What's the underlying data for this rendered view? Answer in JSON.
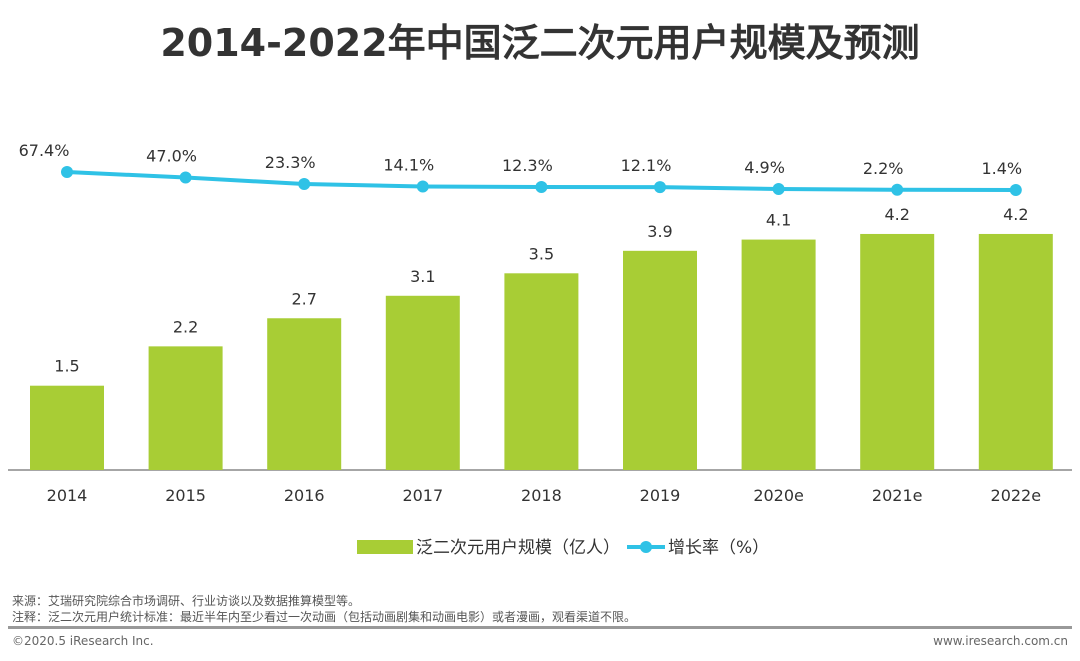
{
  "chart_data": {
    "type": "bar+line",
    "title": "2014-2022年中国泛二次元用户规模及预测",
    "categories": [
      "2014",
      "2015",
      "2016",
      "2017",
      "2018",
      "2019",
      "2020e",
      "2021e",
      "2022e"
    ],
    "series": [
      {
        "name": "泛二次元用户规模（亿人）",
        "type": "bar",
        "color": "#a8cd35",
        "values": [
          1.5,
          2.2,
          2.7,
          3.1,
          3.5,
          3.9,
          4.1,
          4.2,
          4.2
        ],
        "labels": [
          "1.5",
          "2.2",
          "2.7",
          "3.1",
          "3.5",
          "3.9",
          "4.1",
          "4.2",
          "4.2"
        ]
      },
      {
        "name": "增长率（%）",
        "type": "line",
        "color": "#2fc2e6",
        "values": [
          67.4,
          47.0,
          23.3,
          14.1,
          12.3,
          12.1,
          4.9,
          2.2,
          1.4
        ],
        "labels": [
          "67.4%",
          "47.0%",
          "23.3%",
          "14.1%",
          "12.3%",
          "12.1%",
          "4.9%",
          "2.2%",
          "1.4%"
        ]
      }
    ],
    "legend_position": "bottom",
    "grid": false
  },
  "footer": {
    "source": "来源：艾瑞研究院综合市场调研、行业访谈以及数据推算模型等。",
    "note": "注释：泛二次元用户统计标准：最近半年内至少看过一次动画（包括动画剧集和动画电影）或者漫画，观看渠道不限。",
    "copyright": "©2020.5 iResearch Inc.",
    "website": "www.iresearch.com.cn"
  }
}
